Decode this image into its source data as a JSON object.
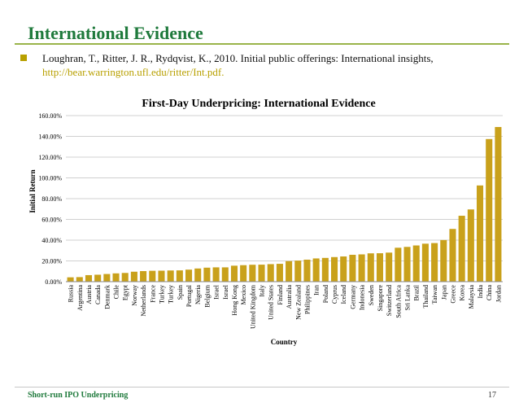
{
  "slide": {
    "title": "International Evidence",
    "citation_text": "Loughran, T., Ritter, J. R.,  Rydqvist, K., 2010. Initial public offerings: International insights,",
    "citation_url": "http://bear.warrington.ufl.edu/ritter/Int.pdf.",
    "footer_left": "Short-run IPO Underpricing",
    "page_number": "17",
    "accent_color": "#1f7a3c",
    "bullet_color": "#b8a000"
  },
  "chart_data": {
    "type": "bar",
    "title": "First-Day Underpricing: International Evidence",
    "xlabel": "Country",
    "ylabel": "Initial Return",
    "ylim": [
      0,
      160
    ],
    "yticks": [
      "0.00%",
      "20.00%",
      "40.00%",
      "60.00%",
      "80.00%",
      "100.00%",
      "120.00%",
      "140.00%",
      "160.00%"
    ],
    "grid": true,
    "bar_color": "#c9a11b",
    "categories": [
      "Russia",
      "Argentina",
      "Austria",
      "Canada",
      "Denmark",
      "Chile",
      "Egypt",
      "Norway",
      "Netherlands",
      "France",
      "Turkey",
      "Turkey",
      "Spain",
      "Portugal",
      "Nigeria",
      "Belgium",
      "Israel",
      "Israel",
      "Hong Kong",
      "Mexico",
      "United Kingdom",
      "Italy",
      "United States",
      "Finland",
      "Australia",
      "New Zealand",
      "Philippines",
      "Iran",
      "Poland",
      "Cyprus",
      "Iceland",
      "Germany",
      "Indonesia",
      "Sweden",
      "Singapore",
      "Switzerland",
      "South Africa",
      "Sri Lanka",
      "Brazil",
      "Thailand",
      "Taiwan",
      "Japan",
      "Greece",
      "Korea",
      "Malaysia",
      "India",
      "China",
      "Jordan"
    ],
    "values": [
      4.2,
      4.4,
      6.3,
      6.7,
      7.4,
      8.0,
      8.4,
      9.6,
      10.2,
      10.5,
      10.6,
      10.8,
      10.9,
      11.6,
      12.7,
      13.5,
      13.8,
      13.8,
      15.4,
      15.9,
      16.3,
      16.4,
      16.9,
      17.2,
      19.8,
      20.3,
      21.2,
      22.4,
      22.9,
      23.7,
      24.3,
      25.9,
      26.3,
      27.3,
      27.4,
      28.0,
      32.7,
      33.5,
      34.9,
      36.6,
      37.2,
      40.1,
      50.8,
      63.5,
      69.6,
      92.7,
      137.4,
      149.0
    ]
  }
}
